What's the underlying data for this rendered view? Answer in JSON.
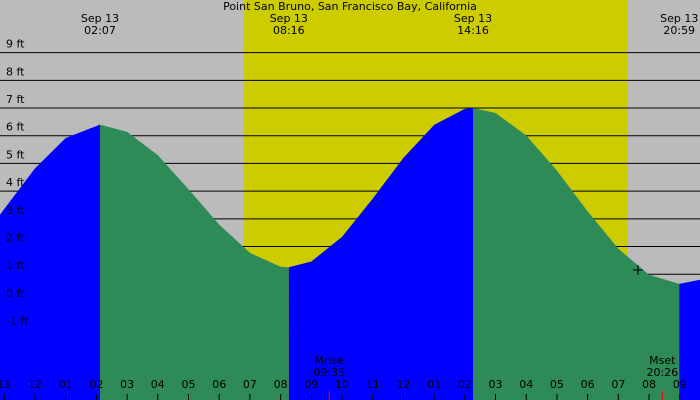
{
  "chart_data": {
    "type": "tide",
    "title": "Point San Bruno, San Francisco Bay, California",
    "xlim": [
      -1.14,
      21.66
    ],
    "ylim": [
      -3.54,
      10.9
    ],
    "yticks": [
      {
        "value": -1,
        "label": "-1 ft"
      },
      {
        "value": 0,
        "label": "0 ft"
      },
      {
        "value": 1,
        "label": "1 ft"
      },
      {
        "value": 2,
        "label": "2 ft"
      },
      {
        "value": 3,
        "label": "3 ft"
      },
      {
        "value": 4,
        "label": "4 ft"
      },
      {
        "value": 5,
        "label": "5 ft"
      },
      {
        "value": 6,
        "label": "6 ft"
      },
      {
        "value": 7,
        "label": "7 ft"
      },
      {
        "value": 8,
        "label": "8 ft"
      },
      {
        "value": 9,
        "label": "9 ft"
      }
    ],
    "xticks": [
      {
        "value": -1,
        "label": "11"
      },
      {
        "value": 0,
        "label": "12"
      },
      {
        "value": 1,
        "label": "01"
      },
      {
        "value": 2,
        "label": "02"
      },
      {
        "value": 3,
        "label": "03"
      },
      {
        "value": 4,
        "label": "04"
      },
      {
        "value": 5,
        "label": "05"
      },
      {
        "value": 6,
        "label": "06"
      },
      {
        "value": 7,
        "label": "07"
      },
      {
        "value": 8,
        "label": "08"
      },
      {
        "value": 9,
        "label": "09"
      },
      {
        "value": 10,
        "label": "10"
      },
      {
        "value": 11,
        "label": "11"
      },
      {
        "value": 12,
        "label": "12"
      },
      {
        "value": 13,
        "label": "01"
      },
      {
        "value": 14,
        "label": "02"
      },
      {
        "value": 15,
        "label": "03"
      },
      {
        "value": 16,
        "label": "04"
      },
      {
        "value": 17,
        "label": "05"
      },
      {
        "value": 18,
        "label": "06"
      },
      {
        "value": 19,
        "label": "07"
      },
      {
        "value": 20,
        "label": "08"
      },
      {
        "value": 21,
        "label": "09"
      }
    ],
    "grid": true,
    "background": "#bbbbbb",
    "daylight": {
      "range": [
        6.81,
        19.31
      ],
      "color": "#cccc00"
    },
    "segments": [
      {
        "color": "#0000ff",
        "x": [
          -1.14,
          -1,
          0,
          1,
          2.117
        ],
        "values": [
          3.15,
          3.36,
          4.82,
          5.92,
          6.4
        ]
      },
      {
        "color": "#2e8b57",
        "x": [
          2.117,
          3,
          4,
          5,
          6,
          7,
          8,
          8.267
        ],
        "values": [
          6.4,
          6.14,
          5.3,
          4.07,
          2.79,
          1.77,
          1.27,
          1.25
        ]
      },
      {
        "color": "#0000ff",
        "x": [
          8.267,
          9,
          10,
          11,
          12,
          13,
          14,
          14.267
        ],
        "values": [
          1.25,
          1.46,
          2.35,
          3.73,
          5.2,
          6.39,
          6.97,
          7.0
        ]
      },
      {
        "color": "#2e8b57",
        "x": [
          14.267,
          15,
          16,
          17,
          18,
          19,
          20,
          20.983
        ],
        "values": [
          7.0,
          6.82,
          6.01,
          4.74,
          3.27,
          1.92,
          0.98,
          0.65
        ]
      },
      {
        "color": "#0000ff",
        "x": [
          20.983,
          21.66
        ],
        "values": [
          0.65,
          0.8
        ]
      }
    ],
    "extremes": [
      {
        "x": 2.117,
        "date": "Sep 13",
        "time": "02:07"
      },
      {
        "x": 8.267,
        "date": "Sep 13",
        "time": "08:16"
      },
      {
        "x": 14.267,
        "date": "Sep 13",
        "time": "14:16"
      },
      {
        "x": 20.983,
        "date": "Sep 13",
        "time": "20:59"
      }
    ],
    "moon": [
      {
        "x": 9.583,
        "name": "Mrise",
        "time": "09:35"
      },
      {
        "x": 20.433,
        "name": "Mset",
        "time": "20:26"
      }
    ]
  }
}
